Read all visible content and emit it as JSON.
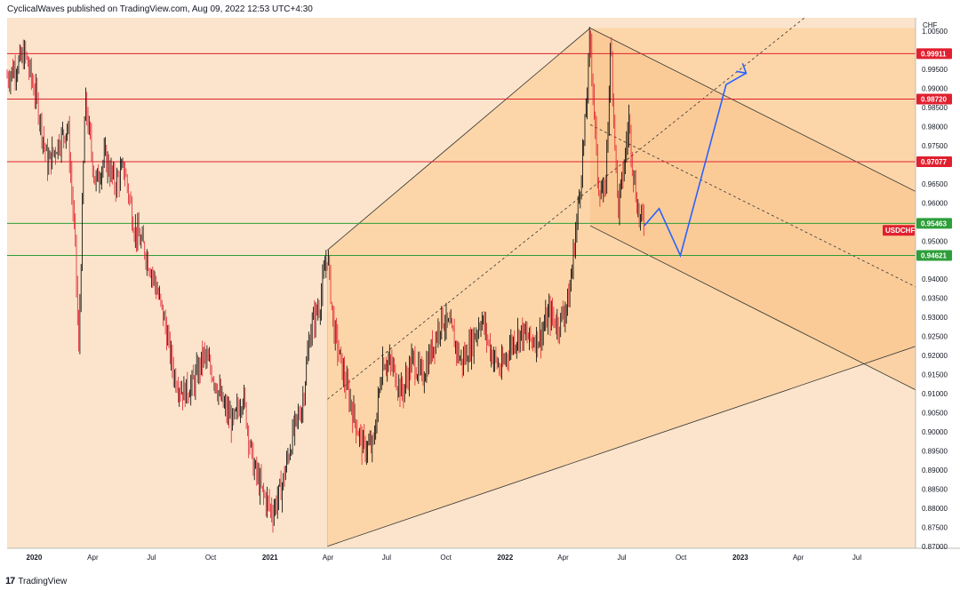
{
  "header": {
    "text": "CyclicalWaves published on TradingView.com, Aug 09, 2022 12:53 UTC+4:30"
  },
  "footer": {
    "logo": "17",
    "brand": "TradingView"
  },
  "colors": {
    "background": "#fbe4cb",
    "channel_fill": "#fbd3a3",
    "channel_fill_dark": "#fac389",
    "resistance": "#e0202f",
    "support": "#2e9e3a",
    "projection": "#2962ff",
    "candle_up": "#000000",
    "candle_down": "#e0202f",
    "badge_red": "#e0202f",
    "badge_green": "#2e9e3a"
  },
  "chart_data": {
    "type": "line",
    "symbol": "USDCHF",
    "currency": "CHF",
    "y_axis": {
      "range": [
        0.8695,
        1.0085
      ],
      "ticks": [
        "1.00500",
        "0.99500",
        "0.99000",
        "0.98500",
        "0.98000",
        "0.97500",
        "0.96500",
        "0.96000",
        "0.95000",
        "0.94000",
        "0.93500",
        "0.93000",
        "0.92500",
        "0.92000",
        "0.91500",
        "0.91000",
        "0.90500",
        "0.90000",
        "0.89500",
        "0.89000",
        "0.88500",
        "0.88000",
        "0.87500",
        "0.87000"
      ]
    },
    "x_axis": {
      "range": [
        "2019-11-20",
        "2023-09-30"
      ],
      "ticks": [
        {
          "date": "2020-01-01",
          "label": "2020"
        },
        {
          "date": "2020-04-01",
          "label": "Apr"
        },
        {
          "date": "2020-07-01",
          "label": "Jul"
        },
        {
          "date": "2020-10-01",
          "label": "Oct"
        },
        {
          "date": "2021-01-01",
          "label": "2021"
        },
        {
          "date": "2021-04-01",
          "label": "Apr"
        },
        {
          "date": "2021-07-01",
          "label": "Jul"
        },
        {
          "date": "2021-10-01",
          "label": "Oct"
        },
        {
          "date": "2022-01-01",
          "label": "2022"
        },
        {
          "date": "2022-04-01",
          "label": "Apr"
        },
        {
          "date": "2022-07-01",
          "label": "Jul"
        },
        {
          "date": "2022-10-01",
          "label": "Oct"
        },
        {
          "date": "2023-01-01",
          "label": "2023"
        },
        {
          "date": "2023-04-01",
          "label": "Apr"
        },
        {
          "date": "2023-07-01",
          "label": "Jul"
        }
      ]
    },
    "price_path": [
      [
        "2019-11-20",
        0.993
      ],
      [
        "2019-12-05",
        0.996
      ],
      [
        "2019-12-18",
        0.999
      ],
      [
        "2020-01-05",
        0.987
      ],
      [
        "2020-01-22",
        0.97
      ],
      [
        "2020-02-08",
        0.976
      ],
      [
        "2020-02-22",
        0.98
      ],
      [
        "2020-03-05",
        0.948
      ],
      [
        "2020-03-10",
        0.92
      ],
      [
        "2020-03-20",
        0.987
      ],
      [
        "2020-04-05",
        0.965
      ],
      [
        "2020-04-20",
        0.972
      ],
      [
        "2020-05-05",
        0.965
      ],
      [
        "2020-05-20",
        0.969
      ],
      [
        "2020-06-05",
        0.953
      ],
      [
        "2020-06-20",
        0.948
      ],
      [
        "2020-07-05",
        0.94
      ],
      [
        "2020-07-20",
        0.93
      ],
      [
        "2020-08-05",
        0.915
      ],
      [
        "2020-08-20",
        0.91
      ],
      [
        "2020-09-05",
        0.913
      ],
      [
        "2020-09-20",
        0.92
      ],
      [
        "2020-10-05",
        0.915
      ],
      [
        "2020-10-20",
        0.907
      ],
      [
        "2020-11-05",
        0.902
      ],
      [
        "2020-11-20",
        0.91
      ],
      [
        "2020-12-05",
        0.892
      ],
      [
        "2020-12-20",
        0.884
      ],
      [
        "2021-01-05",
        0.879
      ],
      [
        "2021-01-20",
        0.886
      ],
      [
        "2021-02-05",
        0.899
      ],
      [
        "2021-02-20",
        0.907
      ],
      [
        "2021-03-05",
        0.927
      ],
      [
        "2021-03-20",
        0.934
      ],
      [
        "2021-03-31",
        0.947
      ],
      [
        "2021-04-10",
        0.927
      ],
      [
        "2021-04-25",
        0.915
      ],
      [
        "2021-05-10",
        0.905
      ],
      [
        "2021-05-25",
        0.896
      ],
      [
        "2021-06-10",
        0.896
      ],
      [
        "2021-06-25",
        0.919
      ],
      [
        "2021-07-10",
        0.917
      ],
      [
        "2021-07-25",
        0.91
      ],
      [
        "2021-08-10",
        0.919
      ],
      [
        "2021-08-25",
        0.914
      ],
      [
        "2021-09-10",
        0.922
      ],
      [
        "2021-09-25",
        0.93
      ],
      [
        "2021-10-10",
        0.926
      ],
      [
        "2021-10-25",
        0.918
      ],
      [
        "2021-11-10",
        0.923
      ],
      [
        "2021-11-25",
        0.93
      ],
      [
        "2021-12-10",
        0.921
      ],
      [
        "2021-12-25",
        0.916
      ],
      [
        "2022-01-10",
        0.923
      ],
      [
        "2022-01-25",
        0.926
      ],
      [
        "2022-02-10",
        0.924
      ],
      [
        "2022-02-25",
        0.925
      ],
      [
        "2022-03-10",
        0.931
      ],
      [
        "2022-03-25",
        0.928
      ],
      [
        "2022-04-10",
        0.935
      ],
      [
        "2022-04-25",
        0.96
      ],
      [
        "2022-05-05",
        0.98
      ],
      [
        "2022-05-13",
        1.004
      ],
      [
        "2022-05-25",
        0.965
      ],
      [
        "2022-06-05",
        0.961
      ],
      [
        "2022-06-14",
        1.002
      ],
      [
        "2022-06-25",
        0.958
      ],
      [
        "2022-07-05",
        0.97
      ],
      [
        "2022-07-12",
        0.982
      ],
      [
        "2022-07-20",
        0.966
      ],
      [
        "2022-07-28",
        0.956
      ],
      [
        "2022-08-05",
        0.955
      ]
    ],
    "horizontal_levels": [
      {
        "price": 0.99911,
        "label": "0.99911",
        "kind": "resistance"
      },
      {
        "price": 0.9872,
        "label": "0.98720",
        "kind": "resistance"
      },
      {
        "price": 0.97077,
        "label": "0.97077",
        "kind": "resistance"
      },
      {
        "price": 0.95463,
        "label": "0.95463",
        "kind": "support"
      },
      {
        "price": 0.94621,
        "label": "0.94621",
        "kind": "support"
      }
    ],
    "symbol_label": {
      "text": "USDCHF",
      "price": 0.9528
    },
    "ascending_channel": {
      "start": [
        "2021-03-31",
        0.9476
      ],
      "end": [
        "2023-09-30",
        1.0
      ],
      "lower_start": [
        "2021-03-31",
        0.87
      ],
      "midline_start": [
        "2021-03-31",
        0.9085
      ],
      "top_peak": [
        "2022-05-13",
        1.0058
      ]
    },
    "descending_channel": {
      "upper": [
        [
          "2022-05-13",
          1.0058
        ],
        [
          "2023-09-30",
          0.963
        ]
      ],
      "lower": [
        [
          "2022-05-13",
          0.954
        ],
        [
          "2023-09-30",
          0.911
        ]
      ],
      "midline": [
        [
          "2022-05-13",
          0.9805
        ],
        [
          "2023-09-30",
          0.938
        ]
      ]
    },
    "projection": [
      [
        "2022-08-05",
        0.954
      ],
      [
        "2022-08-28",
        0.9585
      ],
      [
        "2022-09-30",
        0.9462
      ],
      [
        "2022-12-10",
        0.991
      ],
      [
        "2023-01-10",
        0.994
      ]
    ]
  }
}
